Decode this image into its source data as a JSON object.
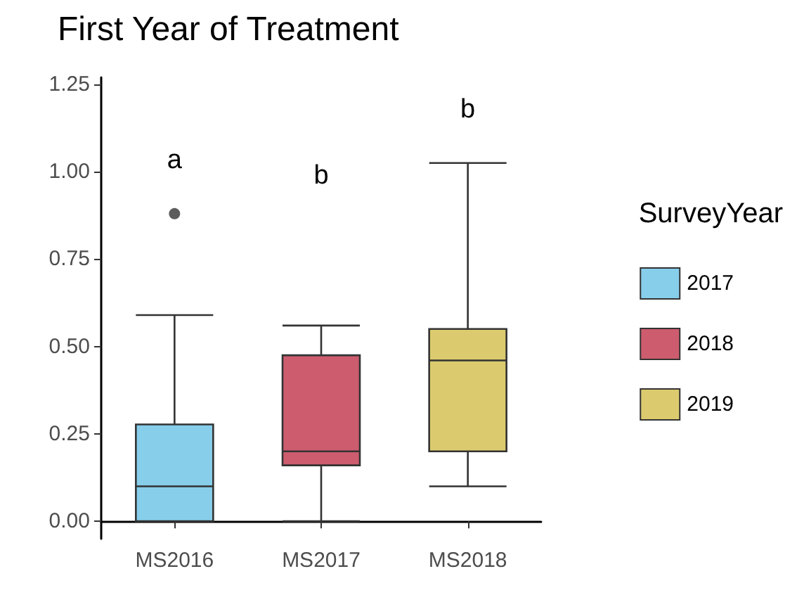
{
  "chart_data": {
    "type": "box",
    "title": "First Year of Treatment",
    "legend_title": "SurveyYear",
    "categories": [
      "MS2016",
      "MS2017",
      "MS2018"
    ],
    "series": [
      {
        "name": "2017",
        "color": "#87ceeb",
        "boxes": [
          {
            "low": 0,
            "q1": 0,
            "median": 0.1,
            "q3": 0.277,
            "high": 0.59,
            "outliers": [
              0.88
            ]
          },
          null,
          null
        ]
      },
      {
        "name": "2018",
        "color": "#cd5c6e",
        "boxes": [
          null,
          {
            "low": 0,
            "q1": 0.16,
            "median": 0.2,
            "q3": 0.475,
            "high": 0.56
          },
          null
        ]
      },
      {
        "name": "2019",
        "color": "#dccb6e",
        "boxes": [
          null,
          null,
          {
            "low": 0.1,
            "q1": 0.2,
            "median": 0.46,
            "q3": 0.55,
            "high": 1.025
          }
        ]
      }
    ],
    "annotations": [
      "a",
      "b",
      "b"
    ],
    "ylim": [
      -0.05,
      1.27
    ],
    "yticks": [
      {
        "value": 0,
        "label": "0.00"
      },
      {
        "value": 0.25,
        "label": "0.25"
      },
      {
        "value": 0.5,
        "label": "0.50"
      },
      {
        "value": 0.75,
        "label": "0.75"
      },
      {
        "value": 1,
        "label": "1.00"
      },
      {
        "value": 1.25,
        "label": "1.25"
      }
    ],
    "grid": false,
    "legend": "right"
  }
}
